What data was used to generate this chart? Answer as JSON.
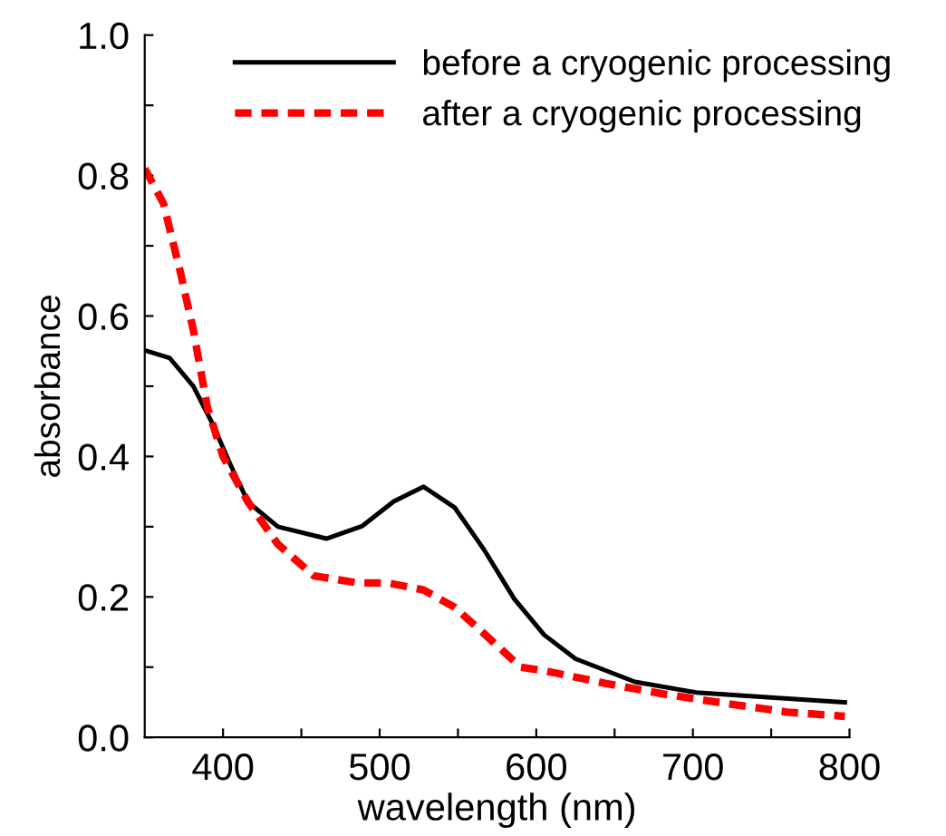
{
  "chart_data": {
    "type": "line",
    "xlabel": "wavelength (nm)",
    "ylabel": "absorbance",
    "xlim": [
      350,
      800
    ],
    "ylim": [
      0,
      1.0
    ],
    "xticks": [
      400,
      {
        "value": 450,
        "label": null
      },
      500,
      {
        "value": 550,
        "label": null
      },
      600,
      {
        "value": 650,
        "label": null
      },
      700,
      {
        "value": 750,
        "label": null
      },
      800
    ],
    "yticks": [
      {
        "value": 0,
        "label": "0.0"
      },
      {
        "value": 0.1,
        "label": null
      },
      0.2,
      {
        "value": 0.3,
        "label": null
      },
      0.4,
      {
        "value": 0.5,
        "label": null
      },
      0.6,
      {
        "value": 0.7,
        "label": null
      },
      0.8,
      {
        "value": 0.9,
        "label": null
      },
      {
        "value": 1.0,
        "label": "1.0"
      }
    ],
    "grid": false,
    "legend": "top right",
    "series": [
      {
        "name": "before a cryogenic processing",
        "color": "#000000",
        "line_style": "solid",
        "x": [
          350,
          366,
          381,
          393,
          405,
          416,
          435,
          466,
          489,
          509,
          528,
          548,
          567,
          586,
          605,
          625,
          663,
          702,
          741,
          797
        ],
        "values": [
          0.551,
          0.54,
          0.5,
          0.448,
          0.387,
          0.335,
          0.3,
          0.283,
          0.301,
          0.336,
          0.357,
          0.327,
          0.266,
          0.197,
          0.146,
          0.112,
          0.079,
          0.064,
          0.058,
          0.05
        ]
      },
      {
        "name": "after a cryogenic processing",
        "color": "#ff0000",
        "line_style": "dashed",
        "x": [
          350,
          362,
          373,
          381,
          390,
          400,
          416,
          435,
          458,
          486,
          505,
          528,
          548,
          567,
          590,
          605,
          644,
          683,
          722,
          760,
          797
        ],
        "values": [
          0.81,
          0.76,
          0.66,
          0.58,
          0.47,
          0.4,
          0.335,
          0.275,
          0.23,
          0.22,
          0.22,
          0.21,
          0.185,
          0.147,
          0.1,
          0.095,
          0.077,
          0.061,
          0.048,
          0.036,
          0.03
        ]
      }
    ]
  }
}
